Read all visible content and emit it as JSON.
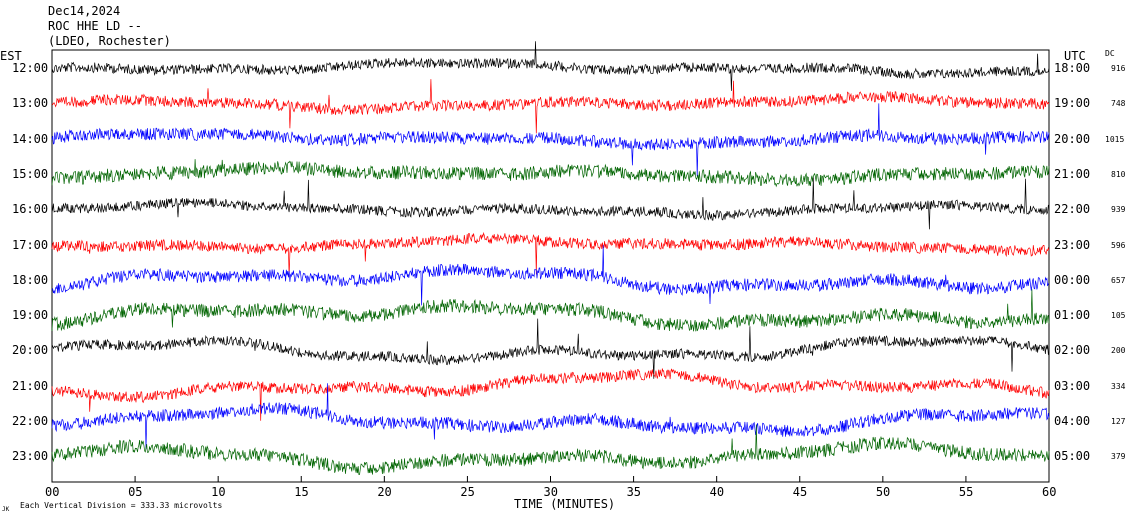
{
  "header": {
    "date": "Dec14,2024",
    "station": "ROC HHE LD --",
    "location": "(LDEO, Rochester)"
  },
  "left_axis_label": "EST",
  "right_axis_label": "UTC",
  "dc_label": "DC",
  "x_axis_title": "TIME (MINUTES)",
  "footnote_prefix": "JK",
  "footnote": "Each Vertical Division =  333.33 microvolts",
  "chart_data": {
    "type": "line",
    "title": "",
    "xlabel": "TIME (MINUTES)",
    "x_range": [
      0,
      60
    ],
    "x_ticks": [
      "00",
      "05",
      "10",
      "15",
      "20",
      "25",
      "30",
      "35",
      "40",
      "45",
      "50",
      "55",
      "60"
    ],
    "rows": [
      {
        "est": "12:00",
        "utc": "18:00",
        "dc": "916",
        "color": "#000000"
      },
      {
        "est": "13:00",
        "utc": "19:00",
        "dc": "748",
        "color": "#ff0000"
      },
      {
        "est": "14:00",
        "utc": "20:00",
        "dc": "1015",
        "color": "#0000ff"
      },
      {
        "est": "15:00",
        "utc": "21:00",
        "dc": "810",
        "color": "#006400"
      },
      {
        "est": "16:00",
        "utc": "22:00",
        "dc": "939",
        "color": "#000000"
      },
      {
        "est": "17:00",
        "utc": "23:00",
        "dc": "596",
        "color": "#ff0000"
      },
      {
        "est": "18:00",
        "utc": "00:00",
        "dc": "657",
        "color": "#0000ff"
      },
      {
        "est": "19:00",
        "utc": "01:00",
        "dc": "105",
        "color": "#006400"
      },
      {
        "est": "20:00",
        "utc": "02:00",
        "dc": "200",
        "color": "#000000"
      },
      {
        "est": "21:00",
        "utc": "03:00",
        "dc": "334",
        "color": "#ff0000"
      },
      {
        "est": "22:00",
        "utc": "04:00",
        "dc": "127",
        "color": "#0000ff"
      },
      {
        "est": "23:00",
        "utc": "05:00",
        "dc": "379",
        "color": "#006400"
      }
    ],
    "grid": false
  }
}
